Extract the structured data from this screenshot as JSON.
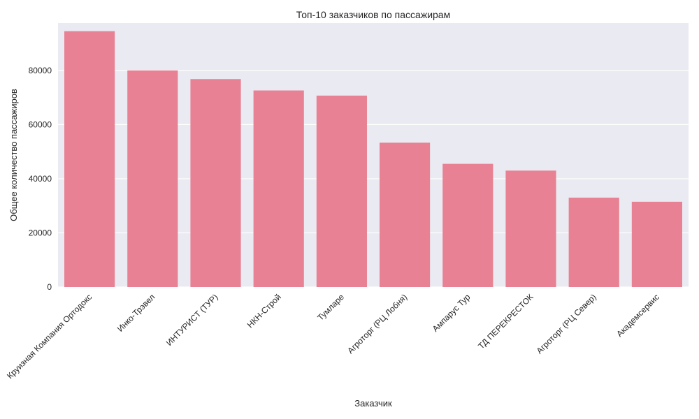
{
  "chart_data": {
    "type": "bar",
    "title": "Топ-10 заказчиков по пассажирам",
    "xlabel": "Заказчик",
    "ylabel": "Общее количество пассажиров",
    "categories": [
      "Круизная Компания Ортодокс",
      "Инко-Трэвел",
      "ИНТУРИСТ (ТУР)",
      "НКН-Строй",
      "Тумларе",
      "Агроторг (РЦ Лобня)",
      "Ампарус Тур",
      "ТД ПЕРЕКРЕСТОК",
      "Агроторг (РЦ Север)",
      "Академсервис"
    ],
    "values": [
      94500,
      80000,
      76800,
      72600,
      70700,
      53300,
      45500,
      43000,
      33000,
      31500
    ],
    "ylim": [
      0,
      97500
    ],
    "yticks": [
      0,
      20000,
      40000,
      60000,
      80000
    ],
    "grid": true,
    "colors": {
      "bar": "#e88193",
      "plot_background": "#eaeaf2",
      "grid": "#ffffff"
    }
  }
}
